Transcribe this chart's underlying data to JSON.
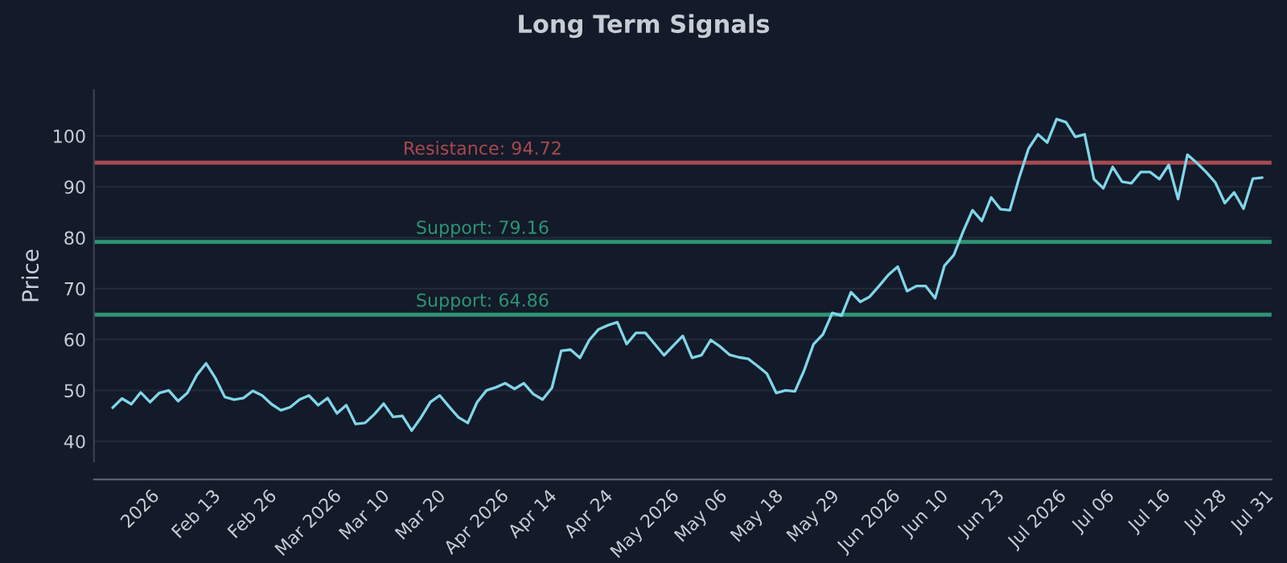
{
  "chart_data": {
    "type": "line",
    "title": "Long Term Signals",
    "ylabel": "Price",
    "categories": [
      null,
      null,
      null,
      "2026",
      null,
      null,
      null,
      null,
      null,
      "Feb 13",
      null,
      null,
      null,
      null,
      null,
      "Feb 26",
      null,
      null,
      null,
      null,
      null,
      "Mar 2026",
      null,
      null,
      null,
      null,
      null,
      "Mar 10",
      null,
      null,
      null,
      null,
      null,
      "Mar 20",
      null,
      null,
      null,
      null,
      null,
      "Apr 2026",
      null,
      null,
      null,
      null,
      null,
      "Apr 14",
      null,
      null,
      null,
      null,
      null,
      "Apr 24",
      null,
      null,
      null,
      null,
      null,
      "May 2026",
      null,
      null,
      null,
      null,
      null,
      "May 06",
      null,
      null,
      null,
      null,
      null,
      "May 18",
      null,
      null,
      null,
      null,
      null,
      "May 29",
      null,
      null,
      null,
      null,
      null,
      "Jun 2026",
      null,
      null,
      null,
      null,
      null,
      "Jun 10",
      null,
      null,
      null,
      null,
      null,
      "Jun 23",
      null,
      null,
      null,
      null,
      null,
      "Jul 2026",
      null,
      null,
      null,
      null,
      null,
      "Jul 06",
      null,
      null,
      null,
      null,
      null,
      "Jul 16",
      null,
      null,
      null,
      null,
      null,
      "Jul 28",
      null,
      null,
      null,
      null,
      "Jul 31",
      null
    ],
    "series": [
      {
        "color": "#7fd6e8",
        "values": [
          46.6,
          48.4,
          47.3,
          49.6,
          47.7,
          49.5,
          50.0,
          47.9,
          49.5,
          53.0,
          55.3,
          52.4,
          48.7,
          48.2,
          48.5,
          49.9,
          49.0,
          47.3,
          46.1,
          46.7,
          48.2,
          49.0,
          47.1,
          48.5,
          45.5,
          47.1,
          43.4,
          43.6,
          45.3,
          47.4,
          44.8,
          45.0,
          42.1,
          44.7,
          47.7,
          49.0,
          46.8,
          44.7,
          43.6,
          47.7,
          50.0,
          50.6,
          51.4,
          50.3,
          51.4,
          49.3,
          48.2,
          50.5,
          57.8,
          58.0,
          56.4,
          59.9,
          62.0,
          62.8,
          63.4,
          59.1,
          61.3,
          61.3,
          59.1,
          56.9,
          58.8,
          60.7,
          56.4,
          56.9,
          59.9,
          58.6,
          57.0,
          56.5,
          56.2,
          54.8,
          53.3,
          49.5,
          50.0,
          49.8,
          54.0,
          59.1,
          61.0,
          65.2,
          64.7,
          69.3,
          67.4,
          68.4,
          70.5,
          72.7,
          74.3,
          69.5,
          70.5,
          70.5,
          68.1,
          74.5,
          76.6,
          81.2,
          85.4,
          83.3,
          87.9,
          85.6,
          85.4,
          91.8,
          97.5,
          100.3,
          98.7,
          103.3,
          102.7,
          99.8,
          100.3,
          91.5,
          89.7,
          93.9,
          91.0,
          90.7,
          92.9,
          92.9,
          91.5,
          94.3,
          87.6,
          96.3,
          94.7,
          92.9,
          90.8,
          86.8,
          88.9,
          85.7,
          91.6,
          91.8
        ]
      }
    ],
    "ylim": [
      36,
      109
    ],
    "yticks": [
      40,
      50,
      60,
      70,
      80,
      90,
      100
    ],
    "grid": "y",
    "ref_lines": [
      {
        "axis": "y",
        "value": 94.72,
        "label": "Resistance: 94.72",
        "color": "#a8494f"
      },
      {
        "axis": "y",
        "value": 79.16,
        "label": "Support: 79.16",
        "color": "#2e9474"
      },
      {
        "axis": "y",
        "value": 64.86,
        "label": "Support: 64.86",
        "color": "#2e9474"
      }
    ]
  }
}
